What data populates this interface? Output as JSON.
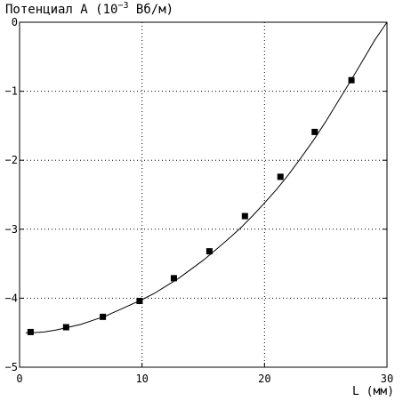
{
  "chart_data": {
    "type": "line",
    "title_prefix": "Потенциал A (10",
    "title_exp": "−3",
    "title_suffix": " Вб/м)",
    "xlabel": "L (мм)",
    "ylabel": "",
    "xlim": [
      0,
      30
    ],
    "ylim": [
      -5,
      0
    ],
    "grid": true,
    "x_ticks": [
      {
        "value": 0,
        "label": "0"
      },
      {
        "value": 10,
        "label": "10"
      },
      {
        "value": 20,
        "label": "20"
      },
      {
        "value": 30,
        "label": "30"
      }
    ],
    "y_ticks": [
      {
        "value": 0,
        "label": "0"
      },
      {
        "value": -1,
        "label": "−1"
      },
      {
        "value": -2,
        "label": "−2"
      },
      {
        "value": -3,
        "label": "−3"
      },
      {
        "value": -4,
        "label": "−4"
      },
      {
        "value": -5,
        "label": "−5"
      }
    ],
    "series": [
      {
        "kind": "markers",
        "x": [
          0.9,
          3.8,
          6.8,
          9.8,
          12.6,
          15.5,
          18.4,
          21.3,
          24.1,
          27.1
        ],
        "y": [
          -4.49,
          -4.42,
          -4.27,
          -4.04,
          -3.71,
          -3.32,
          -2.81,
          -2.24,
          -1.59,
          -0.84
        ]
      },
      {
        "kind": "curve",
        "x": [
          0.5,
          1,
          2,
          3,
          4,
          5,
          6,
          7,
          8,
          9,
          10,
          11,
          12,
          13,
          14,
          15,
          16,
          17,
          18,
          19,
          20,
          21,
          22,
          23,
          24,
          25,
          26,
          27,
          28,
          29,
          30
        ],
        "y": [
          -4.5,
          -4.5,
          -4.49,
          -4.46,
          -4.42,
          -4.38,
          -4.32,
          -4.26,
          -4.18,
          -4.1,
          -4.02,
          -3.93,
          -3.82,
          -3.71,
          -3.58,
          -3.45,
          -3.3,
          -3.15,
          -2.99,
          -2.81,
          -2.62,
          -2.42,
          -2.2,
          -1.96,
          -1.71,
          -1.44,
          -1.15,
          -0.86,
          -0.56,
          -0.26,
          0.0
        ]
      }
    ]
  }
}
